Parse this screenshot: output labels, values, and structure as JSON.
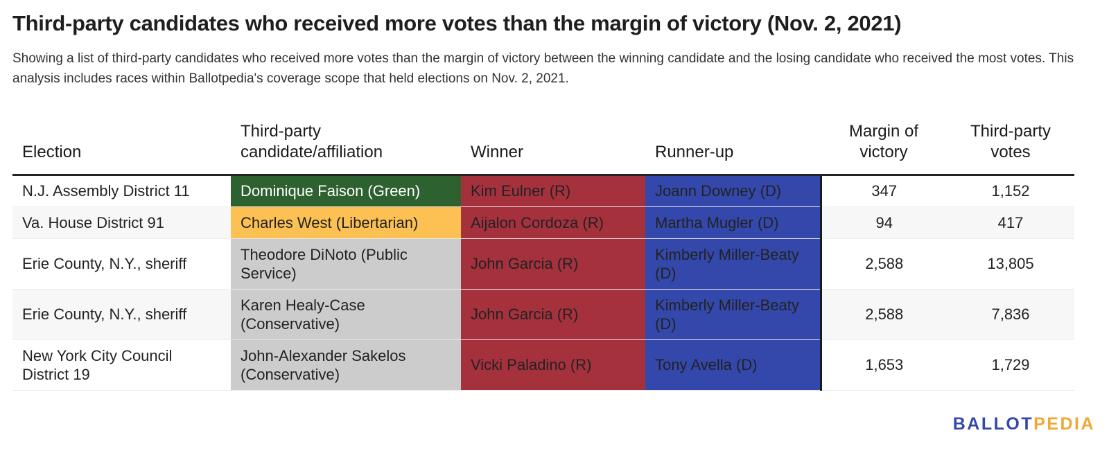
{
  "title": "Third-party candidates who received more votes than the margin of victory (Nov. 2, 2021)",
  "subtitle": "Showing a list of third-party candidates who received more votes than the margin of victory between the winning candidate and the losing candidate who received the most votes. This analysis includes races within Ballotpedia's coverage scope that held elections on Nov. 2, 2021.",
  "headers": {
    "election": "Election",
    "candidate_line1": "Third-party",
    "candidate_line2": "candidate/affiliation",
    "winner": "Winner",
    "runner_up": "Runner-up",
    "margin_line1": "Margin of",
    "margin_line2": "victory",
    "votes_line1": "Third-party",
    "votes_line2": "votes"
  },
  "colors": {
    "green": "#2e6130",
    "libertarian": "#fdc052",
    "other": "#cccccc",
    "republican": "#a5313d",
    "democrat": "#3448ab"
  },
  "chart_data": {
    "type": "table",
    "columns": [
      "Election",
      "Third-party candidate/affiliation",
      "Winner",
      "Runner-up",
      "Margin of victory",
      "Third-party votes"
    ],
    "rows": [
      {
        "election": "N.J. Assembly District 11",
        "candidate": "Dominique Faison (Green)",
        "winner": "Kim Eulner (R)",
        "runner_up": "Joann Downey (D)",
        "margin": "347",
        "votes": "1,152",
        "party_color": "green"
      },
      {
        "election": "Va. House District 91",
        "candidate": "Charles West (Libertarian)",
        "winner": "Aijalon Cordoza (R)",
        "runner_up": "Martha Mugler (D)",
        "margin": "94",
        "votes": "417",
        "party_color": "libertarian"
      },
      {
        "election": "Erie County, N.Y., sheriff",
        "candidate": "Theodore DiNoto (Public Service)",
        "winner": "John Garcia (R)",
        "runner_up": "Kimberly Miller-Beaty (D)",
        "margin": "2,588",
        "votes": "13,805",
        "party_color": "other"
      },
      {
        "election": "Erie County, N.Y., sheriff",
        "candidate": "Karen Healy-Case (Conservative)",
        "winner": "John Garcia (R)",
        "runner_up": "Kimberly Miller-Beaty (D)",
        "margin": "2,588",
        "votes": "7,836",
        "party_color": "other"
      },
      {
        "election": "New York City Council District 19",
        "candidate": "John-Alexander Sakelos (Conservative)",
        "winner": "Vicki Paladino (R)",
        "runner_up": "Tony Avella (D)",
        "margin": "1,653",
        "votes": "1,729",
        "party_color": "other"
      }
    ]
  },
  "logo": {
    "part1": "BALLOT",
    "part2": "PEDIA"
  }
}
